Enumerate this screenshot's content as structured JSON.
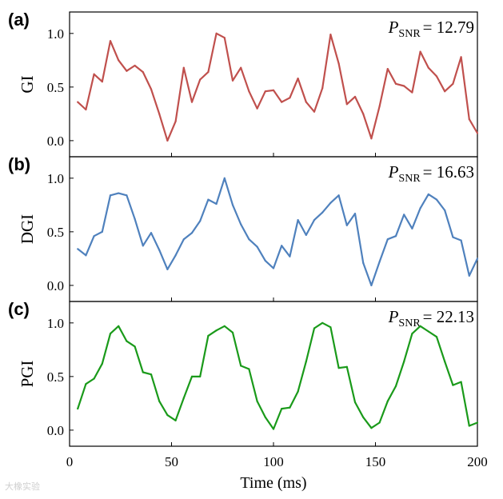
{
  "watermark": "大橡实验",
  "chart_data": [
    {
      "type": "line",
      "panel_label": "(a)",
      "ylabel": "GI",
      "snr_label": "P",
      "snr_sub": "SNR",
      "snr_value": "= 12.79",
      "color": "#c0504d",
      "ylim": [
        -0.15,
        1.2
      ],
      "yticks": [
        "0.0",
        "0.5",
        "1.0"
      ],
      "x": [
        4,
        8,
        12,
        16,
        20,
        24,
        28,
        32,
        36,
        40,
        44,
        48,
        52,
        56,
        60,
        64,
        68,
        72,
        76,
        80,
        84,
        88,
        92,
        96,
        100,
        104,
        108,
        112,
        116,
        120,
        124,
        128,
        132,
        136,
        140,
        144,
        148,
        152,
        156,
        160,
        164,
        168,
        172,
        176,
        180,
        184,
        188,
        192,
        196,
        200
      ],
      "values": [
        0.36,
        0.29,
        0.62,
        0.55,
        0.93,
        0.75,
        0.65,
        0.7,
        0.64,
        0.48,
        0.25,
        0.0,
        0.18,
        0.68,
        0.36,
        0.57,
        0.64,
        1.0,
        0.96,
        0.56,
        0.68,
        0.46,
        0.3,
        0.46,
        0.47,
        0.36,
        0.4,
        0.58,
        0.36,
        0.27,
        0.49,
        0.99,
        0.72,
        0.34,
        0.41,
        0.25,
        0.02,
        0.32,
        0.67,
        0.53,
        0.51,
        0.45,
        0.83,
        0.68,
        0.6,
        0.46,
        0.53,
        0.78,
        0.2,
        0.07
      ]
    },
    {
      "type": "line",
      "panel_label": "(b)",
      "ylabel": "DGI",
      "snr_label": "P",
      "snr_sub": "SNR",
      "snr_value": "= 16.63",
      "color": "#4f81bd",
      "ylim": [
        -0.15,
        1.2
      ],
      "yticks": [
        "0.0",
        "0.5",
        "1.0"
      ],
      "x": [
        4,
        8,
        12,
        16,
        20,
        24,
        28,
        32,
        36,
        40,
        44,
        48,
        52,
        56,
        60,
        64,
        68,
        72,
        76,
        80,
        84,
        88,
        92,
        96,
        100,
        104,
        108,
        112,
        116,
        120,
        124,
        128,
        132,
        136,
        140,
        144,
        148,
        152,
        156,
        160,
        164,
        168,
        172,
        176,
        180,
        184,
        188,
        192,
        196,
        200
      ],
      "values": [
        0.34,
        0.28,
        0.46,
        0.5,
        0.84,
        0.86,
        0.84,
        0.62,
        0.37,
        0.49,
        0.33,
        0.15,
        0.28,
        0.43,
        0.49,
        0.6,
        0.8,
        0.76,
        1.0,
        0.75,
        0.57,
        0.43,
        0.36,
        0.23,
        0.16,
        0.37,
        0.27,
        0.61,
        0.47,
        0.61,
        0.68,
        0.77,
        0.84,
        0.56,
        0.67,
        0.21,
        0.0,
        0.22,
        0.43,
        0.46,
        0.66,
        0.53,
        0.72,
        0.85,
        0.8,
        0.7,
        0.45,
        0.42,
        0.09,
        0.25
      ]
    },
    {
      "type": "line",
      "panel_label": "(c)",
      "ylabel": "PGI",
      "snr_label": "P",
      "snr_sub": "SNR",
      "snr_value": "= 22.13",
      "color": "#1a9a1a",
      "ylim": [
        -0.15,
        1.2
      ],
      "yticks": [
        "0.0",
        "0.5",
        "1.0"
      ],
      "x": [
        4,
        8,
        12,
        16,
        20,
        24,
        28,
        32,
        36,
        40,
        44,
        48,
        52,
        56,
        60,
        64,
        68,
        72,
        76,
        80,
        84,
        88,
        92,
        96,
        100,
        104,
        108,
        112,
        116,
        120,
        124,
        128,
        132,
        136,
        140,
        144,
        148,
        152,
        156,
        160,
        164,
        168,
        172,
        176,
        180,
        184,
        188,
        192,
        196,
        200
      ],
      "values": [
        0.2,
        0.43,
        0.48,
        0.62,
        0.9,
        0.97,
        0.83,
        0.78,
        0.54,
        0.52,
        0.27,
        0.14,
        0.09,
        0.3,
        0.5,
        0.5,
        0.88,
        0.93,
        0.97,
        0.91,
        0.6,
        0.57,
        0.27,
        0.12,
        0.01,
        0.2,
        0.21,
        0.36,
        0.64,
        0.95,
        1.0,
        0.96,
        0.58,
        0.59,
        0.26,
        0.12,
        0.02,
        0.07,
        0.27,
        0.41,
        0.64,
        0.9,
        0.97,
        0.92,
        0.87,
        0.64,
        0.42,
        0.45,
        0.04,
        0.07
      ]
    }
  ],
  "xaxis": {
    "label": "Time (ms)",
    "ticks": [
      0,
      50,
      100,
      150,
      200
    ],
    "xlim": [
      0,
      200
    ]
  }
}
